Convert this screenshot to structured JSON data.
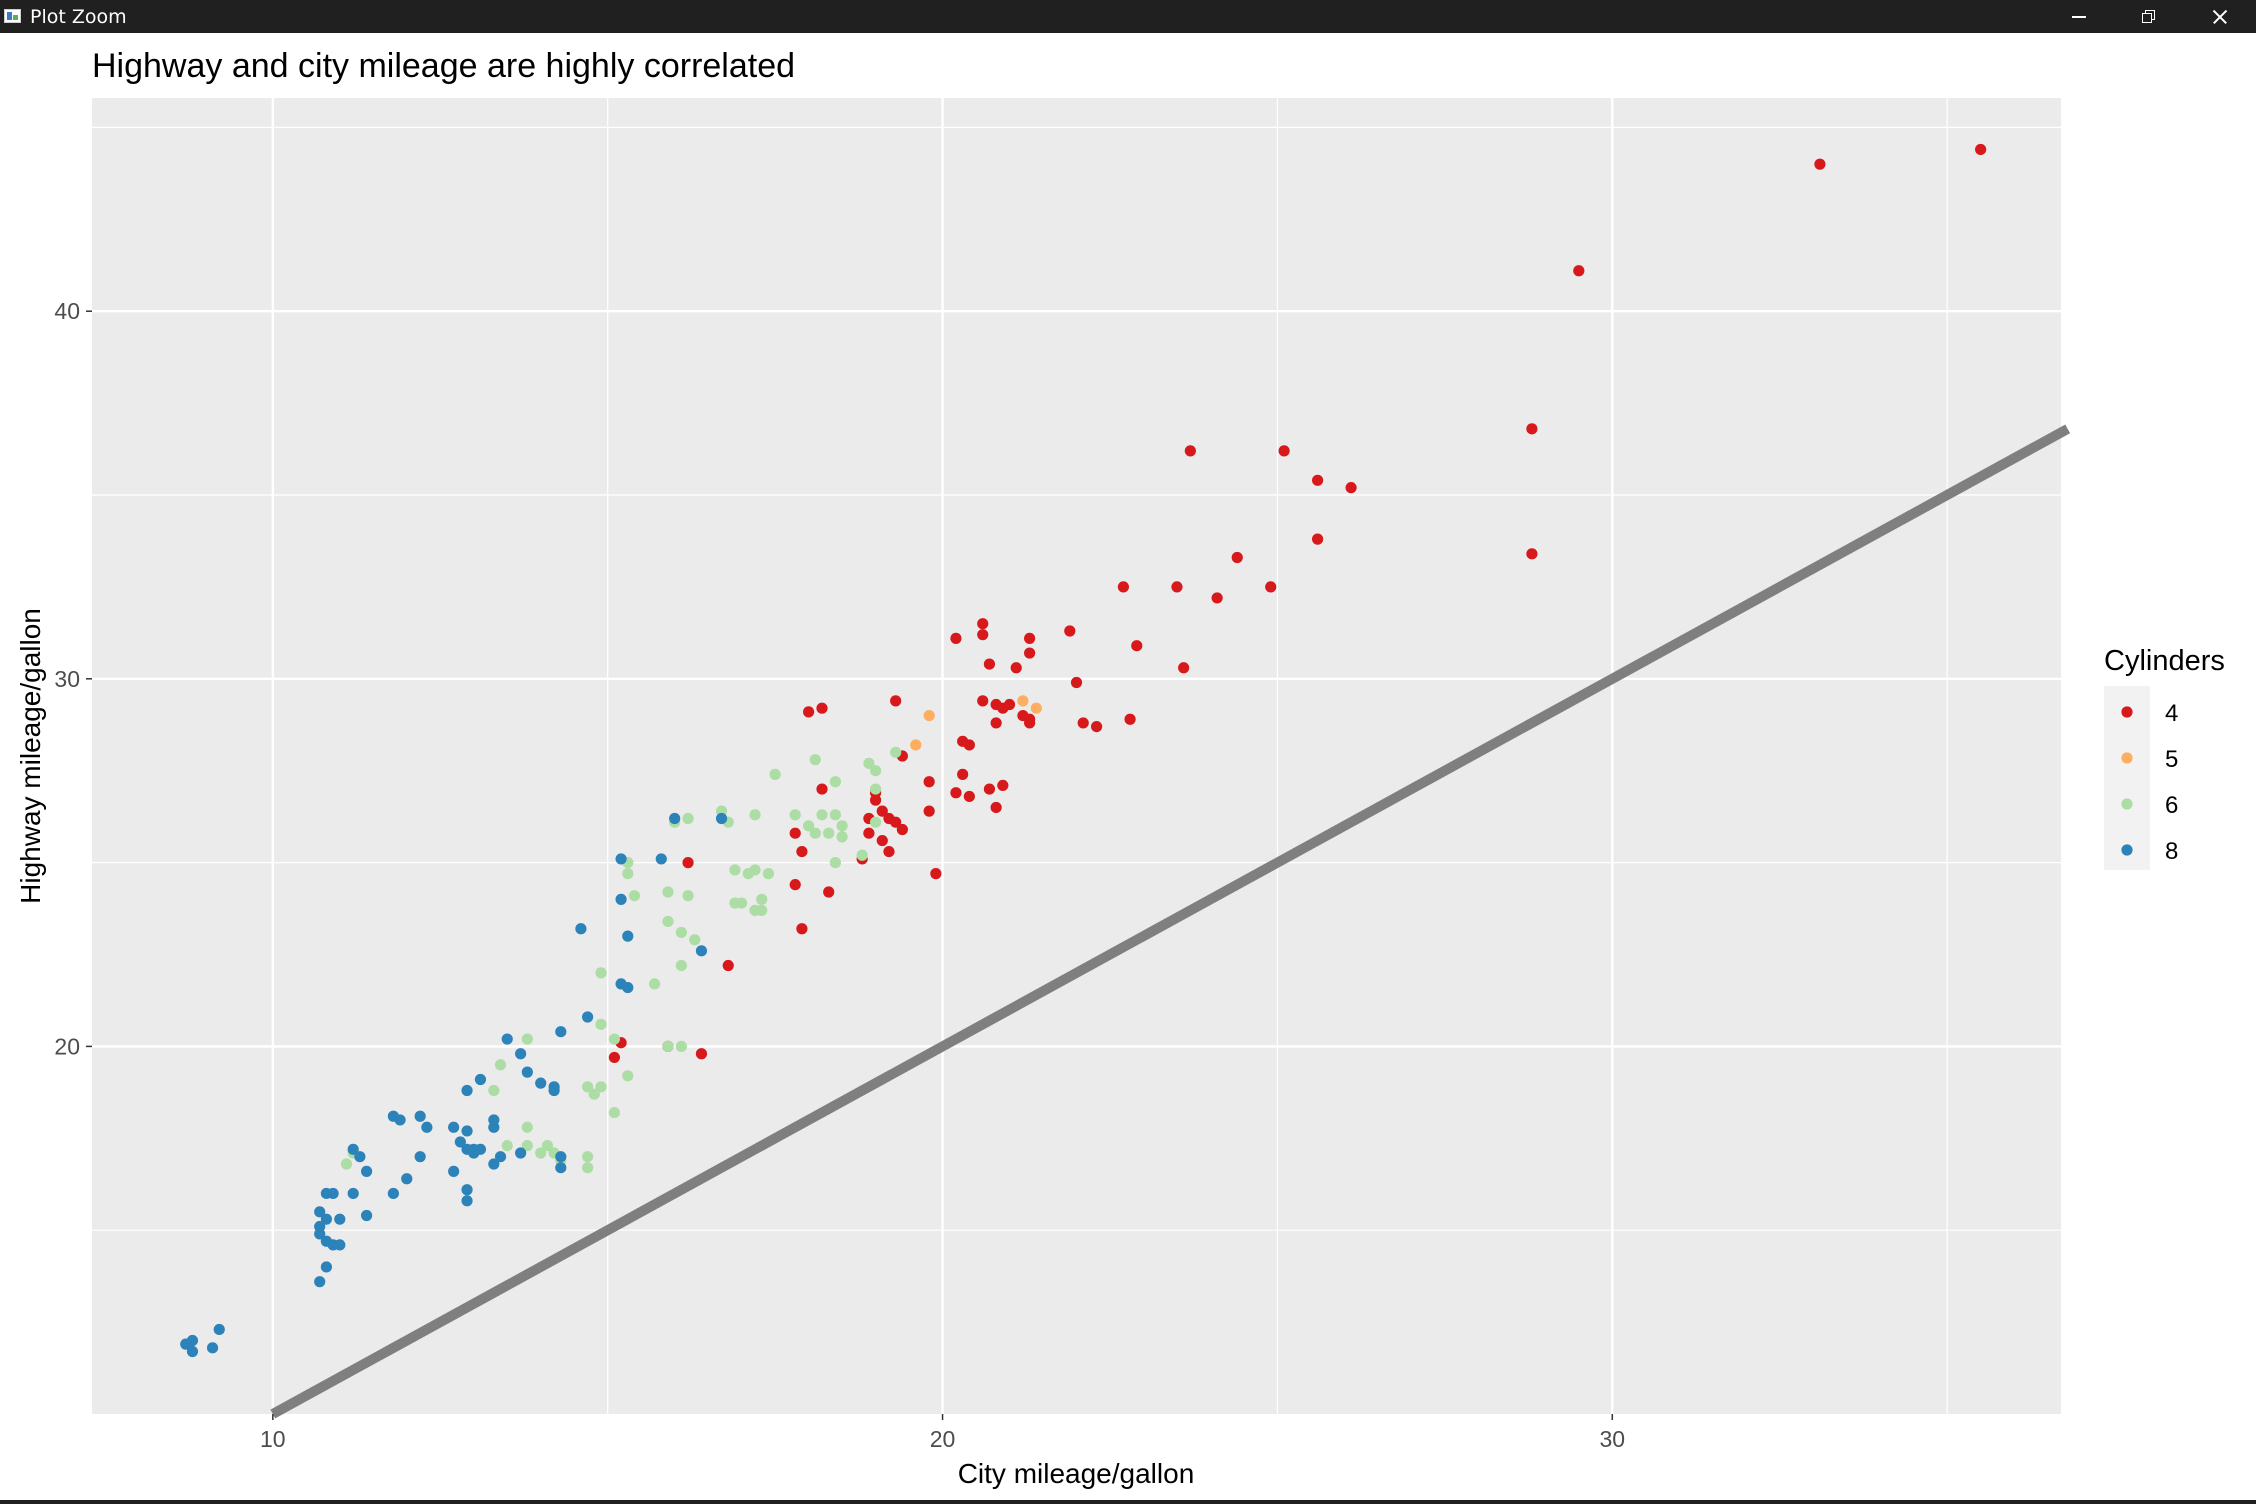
{
  "window": {
    "title": "Plot Zoom",
    "icon": "plot-window-icon",
    "controls": [
      "minimize-icon",
      "restore-icon",
      "close-icon"
    ]
  },
  "chart_data": {
    "type": "scatter",
    "title": "Highway and city mileage are highly correlated",
    "xlabel": "City mileage/gallon",
    "ylabel": "Highway mileage/gallon",
    "xlim": [
      7.3,
      36.7
    ],
    "ylim": [
      10.0,
      45.8
    ],
    "xticks": [
      10,
      20,
      30
    ],
    "yticks": [
      20,
      30,
      40
    ],
    "grid": true,
    "panel_background": "#ebebeb",
    "reference_line": {
      "type": "identity",
      "slope": 1,
      "intercept": 0,
      "color": "#7f7f7f"
    },
    "legend": {
      "title": "Cylinders",
      "placement": "right"
    },
    "series": [
      {
        "name": "4",
        "color": "#d7191c",
        "points": [
          [
            33.1,
            44.0
          ],
          [
            35.5,
            44.4
          ],
          [
            29.5,
            41.1
          ],
          [
            28.8,
            36.8
          ],
          [
            28.8,
            33.4
          ],
          [
            23.7,
            36.2
          ],
          [
            25.1,
            36.2
          ],
          [
            25.6,
            35.4
          ],
          [
            26.1,
            35.2
          ],
          [
            25.6,
            33.8
          ],
          [
            24.4,
            33.3
          ],
          [
            24.1,
            32.2
          ],
          [
            24.9,
            32.5
          ],
          [
            22.7,
            32.5
          ],
          [
            23.5,
            32.5
          ],
          [
            22.9,
            30.9
          ],
          [
            23.6,
            30.3
          ],
          [
            20.6,
            31.5
          ],
          [
            20.6,
            31.2
          ],
          [
            20.2,
            31.1
          ],
          [
            21.3,
            31.1
          ],
          [
            21.3,
            30.7
          ],
          [
            21.9,
            31.3
          ],
          [
            20.7,
            30.4
          ],
          [
            21.1,
            30.3
          ],
          [
            22.0,
            29.9
          ],
          [
            20.6,
            29.4
          ],
          [
            20.8,
            29.3
          ],
          [
            20.9,
            29.2
          ],
          [
            21.0,
            29.3
          ],
          [
            21.2,
            29.0
          ],
          [
            21.3,
            28.9
          ],
          [
            20.8,
            28.8
          ],
          [
            21.3,
            28.8
          ],
          [
            22.1,
            28.8
          ],
          [
            22.3,
            28.7
          ],
          [
            22.8,
            28.9
          ],
          [
            19.3,
            29.4
          ],
          [
            18.2,
            29.2
          ],
          [
            18.0,
            29.1
          ],
          [
            19.4,
            27.9
          ],
          [
            20.3,
            28.3
          ],
          [
            20.4,
            28.2
          ],
          [
            19.8,
            27.2
          ],
          [
            20.3,
            27.4
          ],
          [
            20.2,
            26.9
          ],
          [
            20.4,
            26.8
          ],
          [
            20.7,
            27.0
          ],
          [
            20.9,
            27.1
          ],
          [
            20.8,
            26.5
          ],
          [
            19.8,
            26.4
          ],
          [
            18.2,
            27.0
          ],
          [
            19.0,
            26.9
          ],
          [
            19.0,
            26.7
          ],
          [
            19.1,
            26.4
          ],
          [
            18.9,
            26.2
          ],
          [
            19.2,
            26.2
          ],
          [
            19.3,
            26.1
          ],
          [
            19.4,
            25.9
          ],
          [
            18.9,
            25.8
          ],
          [
            19.1,
            25.6
          ],
          [
            19.2,
            25.3
          ],
          [
            18.8,
            25.1
          ],
          [
            17.8,
            25.8
          ],
          [
            17.9,
            25.3
          ],
          [
            19.9,
            24.7
          ],
          [
            16.2,
            25.0
          ],
          [
            17.8,
            24.4
          ],
          [
            18.3,
            24.2
          ],
          [
            17.9,
            23.2
          ],
          [
            16.8,
            22.2
          ],
          [
            15.2,
            20.1
          ],
          [
            15.9,
            20.0
          ],
          [
            15.1,
            19.7
          ],
          [
            16.4,
            19.8
          ]
        ]
      },
      {
        "name": "5",
        "color": "#fdae61",
        "points": [
          [
            19.8,
            29.0
          ],
          [
            19.6,
            28.2
          ],
          [
            21.2,
            29.4
          ],
          [
            21.4,
            29.2
          ]
        ]
      },
      {
        "name": "6",
        "color": "#abdda4",
        "points": [
          [
            18.1,
            27.8
          ],
          [
            19.3,
            28.0
          ],
          [
            17.5,
            27.4
          ],
          [
            18.9,
            27.7
          ],
          [
            19.0,
            27.5
          ],
          [
            18.4,
            27.2
          ],
          [
            19.0,
            27.0
          ],
          [
            17.2,
            26.3
          ],
          [
            17.8,
            26.3
          ],
          [
            18.4,
            26.3
          ],
          [
            18.2,
            26.3
          ],
          [
            18.0,
            26.0
          ],
          [
            18.5,
            26.0
          ],
          [
            18.1,
            25.8
          ],
          [
            18.3,
            25.8
          ],
          [
            18.5,
            25.7
          ],
          [
            19.0,
            26.1
          ],
          [
            16.0,
            26.1
          ],
          [
            16.2,
            26.2
          ],
          [
            16.7,
            26.4
          ],
          [
            16.8,
            26.1
          ],
          [
            15.3,
            25.0
          ],
          [
            16.9,
            24.8
          ],
          [
            17.2,
            24.8
          ],
          [
            17.4,
            24.7
          ],
          [
            17.1,
            24.7
          ],
          [
            18.4,
            25.0
          ],
          [
            18.8,
            25.2
          ],
          [
            15.3,
            24.7
          ],
          [
            15.4,
            24.1
          ],
          [
            15.9,
            24.2
          ],
          [
            16.2,
            24.1
          ],
          [
            16.9,
            23.9
          ],
          [
            17.0,
            23.9
          ],
          [
            17.3,
            24.0
          ],
          [
            17.3,
            23.7
          ],
          [
            17.2,
            23.7
          ],
          [
            15.9,
            23.4
          ],
          [
            16.1,
            23.1
          ],
          [
            16.3,
            22.9
          ],
          [
            14.9,
            22.0
          ],
          [
            16.1,
            22.2
          ],
          [
            15.7,
            21.7
          ],
          [
            14.9,
            20.6
          ],
          [
            15.1,
            20.2
          ],
          [
            15.9,
            20.0
          ],
          [
            16.1,
            20.0
          ],
          [
            13.8,
            20.2
          ],
          [
            13.4,
            19.5
          ],
          [
            15.3,
            19.2
          ],
          [
            14.7,
            18.9
          ],
          [
            14.9,
            18.9
          ],
          [
            14.8,
            18.7
          ],
          [
            15.1,
            18.2
          ],
          [
            13.3,
            18.8
          ],
          [
            13.8,
            17.8
          ],
          [
            13.5,
            17.3
          ],
          [
            13.8,
            17.3
          ],
          [
            14.1,
            17.3
          ],
          [
            14.2,
            17.1
          ],
          [
            14.7,
            17.0
          ],
          [
            14.3,
            16.9
          ],
          [
            14.7,
            16.7
          ],
          [
            14.0,
            17.1
          ],
          [
            11.1,
            16.8
          ],
          [
            11.2,
            17.1
          ]
        ]
      },
      {
        "name": "8",
        "color": "#2b83ba",
        "points": [
          [
            16.0,
            26.2
          ],
          [
            16.7,
            26.2
          ],
          [
            15.8,
            25.1
          ],
          [
            15.2,
            25.1
          ],
          [
            15.2,
            24.0
          ],
          [
            15.3,
            23.0
          ],
          [
            14.6,
            23.2
          ],
          [
            16.4,
            22.6
          ],
          [
            15.2,
            21.7
          ],
          [
            15.3,
            21.6
          ],
          [
            14.7,
            20.8
          ],
          [
            13.5,
            20.2
          ],
          [
            14.3,
            20.4
          ],
          [
            13.7,
            19.8
          ],
          [
            13.8,
            19.3
          ],
          [
            14.0,
            19.0
          ],
          [
            13.1,
            19.1
          ],
          [
            14.2,
            18.9
          ],
          [
            14.2,
            18.8
          ],
          [
            12.9,
            18.8
          ],
          [
            11.8,
            18.1
          ],
          [
            11.9,
            18.0
          ],
          [
            12.2,
            18.1
          ],
          [
            12.3,
            17.8
          ],
          [
            12.9,
            17.7
          ],
          [
            12.7,
            17.8
          ],
          [
            13.3,
            17.8
          ],
          [
            13.3,
            18.0
          ],
          [
            12.8,
            17.4
          ],
          [
            12.9,
            17.2
          ],
          [
            13.0,
            17.2
          ],
          [
            13.1,
            17.2
          ],
          [
            13.0,
            17.1
          ],
          [
            13.4,
            17.0
          ],
          [
            13.3,
            16.8
          ],
          [
            13.7,
            17.1
          ],
          [
            14.3,
            17.0
          ],
          [
            14.3,
            16.7
          ],
          [
            12.2,
            17.0
          ],
          [
            12.7,
            16.6
          ],
          [
            11.2,
            17.2
          ],
          [
            11.3,
            17.0
          ],
          [
            11.4,
            16.6
          ],
          [
            12.0,
            16.4
          ],
          [
            11.8,
            16.0
          ],
          [
            12.9,
            16.1
          ],
          [
            12.9,
            15.8
          ],
          [
            10.8,
            16.0
          ],
          [
            10.9,
            16.0
          ],
          [
            11.2,
            16.0
          ],
          [
            10.7,
            15.5
          ],
          [
            10.8,
            15.3
          ],
          [
            10.7,
            15.1
          ],
          [
            11.0,
            15.3
          ],
          [
            10.7,
            14.9
          ],
          [
            10.8,
            14.7
          ],
          [
            11.0,
            14.6
          ],
          [
            10.9,
            14.6
          ],
          [
            11.4,
            15.4
          ],
          [
            10.8,
            14.0
          ],
          [
            10.7,
            13.6
          ],
          [
            8.7,
            11.9
          ],
          [
            8.8,
            12.0
          ],
          [
            8.8,
            11.7
          ],
          [
            9.1,
            11.8
          ],
          [
            9.2,
            12.3
          ]
        ]
      }
    ]
  }
}
